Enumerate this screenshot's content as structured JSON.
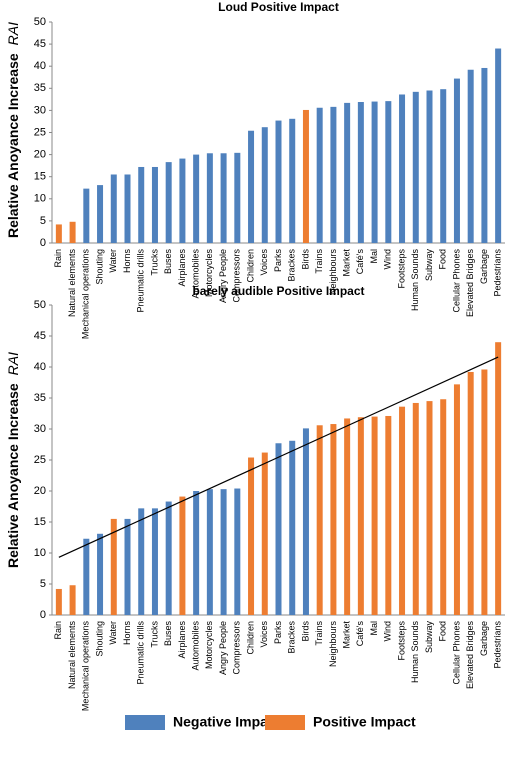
{
  "chart_data": [
    {
      "type": "bar",
      "title": "Loud Positive Impact",
      "y_label": "Relative Anoyance Increase",
      "y_label_italic": "RAI",
      "categories": [
        "Rain",
        "Natural elements",
        "Mechanical operations",
        "Shouting",
        "Water",
        "Horns",
        "Pneumatic drills",
        "Trucks",
        "Buses",
        "Airplanes",
        "Automobiles",
        "Motorcycles",
        "Angry People",
        "Compressors",
        "Children",
        "Voices",
        "Parks",
        "Brackes",
        "Birds",
        "Trains",
        "Neighbours",
        "Market",
        "Café's",
        "Mal",
        "Wind",
        "Footsteps",
        "Human Sounds",
        "Subway",
        "Food",
        "Cellular Phones",
        "Elevated Bridges",
        "Garbage",
        "Pedestrians"
      ],
      "values": [
        4.2,
        4.8,
        12.3,
        13.1,
        15.5,
        15.5,
        17.2,
        17.2,
        18.3,
        19.1,
        20,
        20.3,
        20.3,
        20.4,
        25.4,
        26.2,
        27.7,
        28.1,
        30.1,
        30.6,
        30.8,
        31.7,
        31.9,
        32,
        32.1,
        33.6,
        34.2,
        34.5,
        34.8,
        37.2,
        39.2,
        39.6,
        44
      ],
      "colors": [
        "#ed7d31",
        "#ed7d31",
        "#4f81bd",
        "#4f81bd",
        "#4f81bd",
        "#4f81bd",
        "#4f81bd",
        "#4f81bd",
        "#4f81bd",
        "#4f81bd",
        "#4f81bd",
        "#4f81bd",
        "#4f81bd",
        "#4f81bd",
        "#4f81bd",
        "#4f81bd",
        "#4f81bd",
        "#4f81bd",
        "#ed7d31",
        "#4f81bd",
        "#4f81bd",
        "#4f81bd",
        "#4f81bd",
        "#4f81bd",
        "#4f81bd",
        "#4f81bd",
        "#4f81bd",
        "#4f81bd",
        "#4f81bd",
        "#4f81bd",
        "#4f81bd",
        "#4f81bd",
        "#4f81bd"
      ],
      "ylim": [
        0,
        50
      ],
      "yticks": [
        0,
        5,
        10,
        15,
        20,
        25,
        30,
        35,
        40,
        45,
        50
      ]
    },
    {
      "type": "bar",
      "title": "barely audible Positive Impact",
      "y_label": "Relative Anoyance Increase",
      "y_label_italic": "RAI",
      "categories": [
        "Rain",
        "Natural elements",
        "Mechanical operations",
        "Shouting",
        "Water",
        "Horns",
        "Pneumatic drills",
        "Trucks",
        "Buses",
        "Airplanes",
        "Automobiles",
        "Motorcycles",
        "Angry People",
        "Compressors",
        "Children",
        "Voices",
        "Parks",
        "Brackes",
        "Birds",
        "Trains",
        "Neighbours",
        "Market",
        "Café's",
        "Mal",
        "Wind",
        "Footsteps",
        "Human Sounds",
        "Subway",
        "Food",
        "Cellular Phones",
        "Elevated Bridges",
        "Garbage",
        "Pedestrians"
      ],
      "values": [
        4.2,
        4.8,
        12.3,
        13.1,
        15.5,
        15.5,
        17.2,
        17.2,
        18.3,
        19.1,
        20,
        20.3,
        20.3,
        20.4,
        25.4,
        26.2,
        27.7,
        28.1,
        30.1,
        30.6,
        30.8,
        31.7,
        31.9,
        32,
        32.1,
        33.6,
        34.2,
        34.5,
        34.8,
        37.2,
        39.2,
        39.6,
        44
      ],
      "colors": [
        "#ed7d31",
        "#ed7d31",
        "#4f81bd",
        "#4f81bd",
        "#ed7d31",
        "#4f81bd",
        "#4f81bd",
        "#4f81bd",
        "#4f81bd",
        "#ed7d31",
        "#4f81bd",
        "#4f81bd",
        "#4f81bd",
        "#4f81bd",
        "#ed7d31",
        "#ed7d31",
        "#4f81bd",
        "#4f81bd",
        "#4f81bd",
        "#ed7d31",
        "#ed7d31",
        "#ed7d31",
        "#ed7d31",
        "#ed7d31",
        "#ed7d31",
        "#ed7d31",
        "#ed7d31",
        "#ed7d31",
        "#ed7d31",
        "#ed7d31",
        "#ed7d31",
        "#ed7d31",
        "#ed7d31"
      ],
      "trend": [
        9.3,
        41.6
      ],
      "trend_color": "#000000",
      "ylim": [
        0,
        50
      ],
      "yticks": [
        0,
        5,
        10,
        15,
        20,
        25,
        30,
        35,
        40,
        45,
        50
      ]
    }
  ],
  "legend": [
    {
      "name": "Negative Impact",
      "color": "#4f81bd"
    },
    {
      "name": "Positive Impact",
      "color": "#ed7d31"
    }
  ]
}
